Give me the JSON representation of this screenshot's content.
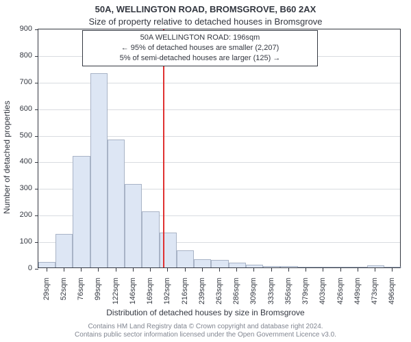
{
  "title": "50A, WELLINGTON ROAD, BROMSGROVE, B60 2AX",
  "subtitle": "Size of property relative to detached houses in Bromsgrove",
  "annotation": {
    "line1": "50A WELLINGTON ROAD: 196sqm",
    "line2": "← 95% of detached houses are smaller (2,207)",
    "line3": "5% of semi-detached houses are larger (125) →"
  },
  "ylabel": "Number of detached properties",
  "xlabel": "Distribution of detached houses by size in Bromsgrove",
  "footer1": "Contains HM Land Registry data © Crown copyright and database right 2024.",
  "footer2": "Contains public sector information licensed under the Open Government Licence v3.0.",
  "chart": {
    "type": "histogram",
    "ylim": [
      0,
      900
    ],
    "ytick_step": 100,
    "bar_fill": "#dde6f4",
    "bar_stroke": "#a8b3c6",
    "grid_color": "#d8dbe0",
    "axis_color": "#333740",
    "refline_color": "#e03030",
    "refline_x_index": 7.2,
    "bin_width": 23,
    "bins": [
      {
        "x": 29,
        "count": 20
      },
      {
        "x": 52,
        "count": 125
      },
      {
        "x": 76,
        "count": 420
      },
      {
        "x": 99,
        "count": 730
      },
      {
        "x": 122,
        "count": 480
      },
      {
        "x": 146,
        "count": 315
      },
      {
        "x": 169,
        "count": 210
      },
      {
        "x": 192,
        "count": 130
      },
      {
        "x": 216,
        "count": 65
      },
      {
        "x": 239,
        "count": 30
      },
      {
        "x": 263,
        "count": 28
      },
      {
        "x": 286,
        "count": 18
      },
      {
        "x": 309,
        "count": 10
      },
      {
        "x": 333,
        "count": 4
      },
      {
        "x": 356,
        "count": 5
      },
      {
        "x": 379,
        "count": 2
      },
      {
        "x": 403,
        "count": 3
      },
      {
        "x": 426,
        "count": 2
      },
      {
        "x": 449,
        "count": 2
      },
      {
        "x": 473,
        "count": 8
      },
      {
        "x": 496,
        "count": 2
      }
    ]
  }
}
